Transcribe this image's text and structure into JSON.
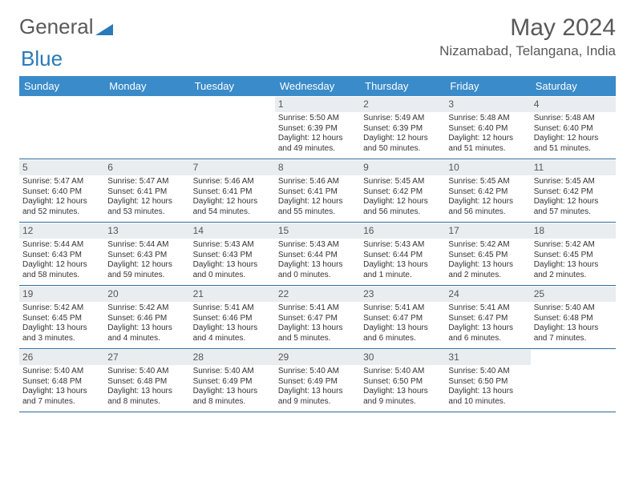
{
  "brand": {
    "part1": "General",
    "part2": "Blue"
  },
  "title": "May 2024",
  "location": "Nizamabad, Telangana, India",
  "colors": {
    "header_bg": "#3a8bc9",
    "header_text": "#ffffff",
    "daynum_bg": "#e9edf0",
    "row_border": "#2e6a9e",
    "body_text": "#333333",
    "title_text": "#595959",
    "brand_gray": "#5a5a5a",
    "brand_blue": "#2a7ab9",
    "page_bg": "#ffffff"
  },
  "typography": {
    "month_title_pt": 30,
    "location_pt": 17,
    "logo_pt": 26,
    "day_header_pt": 13,
    "daynum_pt": 12,
    "cell_text_pt": 10
  },
  "layout": {
    "columns": 7,
    "column_width_pct": 14.28
  },
  "days": [
    "Sunday",
    "Monday",
    "Tuesday",
    "Wednesday",
    "Thursday",
    "Friday",
    "Saturday"
  ],
  "weeks": [
    [
      {
        "n": "",
        "sr": "",
        "ss": "",
        "dl": ""
      },
      {
        "n": "",
        "sr": "",
        "ss": "",
        "dl": ""
      },
      {
        "n": "",
        "sr": "",
        "ss": "",
        "dl": ""
      },
      {
        "n": "1",
        "sr": "Sunrise: 5:50 AM",
        "ss": "Sunset: 6:39 PM",
        "dl": "Daylight: 12 hours and 49 minutes."
      },
      {
        "n": "2",
        "sr": "Sunrise: 5:49 AM",
        "ss": "Sunset: 6:39 PM",
        "dl": "Daylight: 12 hours and 50 minutes."
      },
      {
        "n": "3",
        "sr": "Sunrise: 5:48 AM",
        "ss": "Sunset: 6:40 PM",
        "dl": "Daylight: 12 hours and 51 minutes."
      },
      {
        "n": "4",
        "sr": "Sunrise: 5:48 AM",
        "ss": "Sunset: 6:40 PM",
        "dl": "Daylight: 12 hours and 51 minutes."
      }
    ],
    [
      {
        "n": "5",
        "sr": "Sunrise: 5:47 AM",
        "ss": "Sunset: 6:40 PM",
        "dl": "Daylight: 12 hours and 52 minutes."
      },
      {
        "n": "6",
        "sr": "Sunrise: 5:47 AM",
        "ss": "Sunset: 6:41 PM",
        "dl": "Daylight: 12 hours and 53 minutes."
      },
      {
        "n": "7",
        "sr": "Sunrise: 5:46 AM",
        "ss": "Sunset: 6:41 PM",
        "dl": "Daylight: 12 hours and 54 minutes."
      },
      {
        "n": "8",
        "sr": "Sunrise: 5:46 AM",
        "ss": "Sunset: 6:41 PM",
        "dl": "Daylight: 12 hours and 55 minutes."
      },
      {
        "n": "9",
        "sr": "Sunrise: 5:45 AM",
        "ss": "Sunset: 6:42 PM",
        "dl": "Daylight: 12 hours and 56 minutes."
      },
      {
        "n": "10",
        "sr": "Sunrise: 5:45 AM",
        "ss": "Sunset: 6:42 PM",
        "dl": "Daylight: 12 hours and 56 minutes."
      },
      {
        "n": "11",
        "sr": "Sunrise: 5:45 AM",
        "ss": "Sunset: 6:42 PM",
        "dl": "Daylight: 12 hours and 57 minutes."
      }
    ],
    [
      {
        "n": "12",
        "sr": "Sunrise: 5:44 AM",
        "ss": "Sunset: 6:43 PM",
        "dl": "Daylight: 12 hours and 58 minutes."
      },
      {
        "n": "13",
        "sr": "Sunrise: 5:44 AM",
        "ss": "Sunset: 6:43 PM",
        "dl": "Daylight: 12 hours and 59 minutes."
      },
      {
        "n": "14",
        "sr": "Sunrise: 5:43 AM",
        "ss": "Sunset: 6:43 PM",
        "dl": "Daylight: 13 hours and 0 minutes."
      },
      {
        "n": "15",
        "sr": "Sunrise: 5:43 AM",
        "ss": "Sunset: 6:44 PM",
        "dl": "Daylight: 13 hours and 0 minutes."
      },
      {
        "n": "16",
        "sr": "Sunrise: 5:43 AM",
        "ss": "Sunset: 6:44 PM",
        "dl": "Daylight: 13 hours and 1 minute."
      },
      {
        "n": "17",
        "sr": "Sunrise: 5:42 AM",
        "ss": "Sunset: 6:45 PM",
        "dl": "Daylight: 13 hours and 2 minutes."
      },
      {
        "n": "18",
        "sr": "Sunrise: 5:42 AM",
        "ss": "Sunset: 6:45 PM",
        "dl": "Daylight: 13 hours and 2 minutes."
      }
    ],
    [
      {
        "n": "19",
        "sr": "Sunrise: 5:42 AM",
        "ss": "Sunset: 6:45 PM",
        "dl": "Daylight: 13 hours and 3 minutes."
      },
      {
        "n": "20",
        "sr": "Sunrise: 5:42 AM",
        "ss": "Sunset: 6:46 PM",
        "dl": "Daylight: 13 hours and 4 minutes."
      },
      {
        "n": "21",
        "sr": "Sunrise: 5:41 AM",
        "ss": "Sunset: 6:46 PM",
        "dl": "Daylight: 13 hours and 4 minutes."
      },
      {
        "n": "22",
        "sr": "Sunrise: 5:41 AM",
        "ss": "Sunset: 6:47 PM",
        "dl": "Daylight: 13 hours and 5 minutes."
      },
      {
        "n": "23",
        "sr": "Sunrise: 5:41 AM",
        "ss": "Sunset: 6:47 PM",
        "dl": "Daylight: 13 hours and 6 minutes."
      },
      {
        "n": "24",
        "sr": "Sunrise: 5:41 AM",
        "ss": "Sunset: 6:47 PM",
        "dl": "Daylight: 13 hours and 6 minutes."
      },
      {
        "n": "25",
        "sr": "Sunrise: 5:40 AM",
        "ss": "Sunset: 6:48 PM",
        "dl": "Daylight: 13 hours and 7 minutes."
      }
    ],
    [
      {
        "n": "26",
        "sr": "Sunrise: 5:40 AM",
        "ss": "Sunset: 6:48 PM",
        "dl": "Daylight: 13 hours and 7 minutes."
      },
      {
        "n": "27",
        "sr": "Sunrise: 5:40 AM",
        "ss": "Sunset: 6:48 PM",
        "dl": "Daylight: 13 hours and 8 minutes."
      },
      {
        "n": "28",
        "sr": "Sunrise: 5:40 AM",
        "ss": "Sunset: 6:49 PM",
        "dl": "Daylight: 13 hours and 8 minutes."
      },
      {
        "n": "29",
        "sr": "Sunrise: 5:40 AM",
        "ss": "Sunset: 6:49 PM",
        "dl": "Daylight: 13 hours and 9 minutes."
      },
      {
        "n": "30",
        "sr": "Sunrise: 5:40 AM",
        "ss": "Sunset: 6:50 PM",
        "dl": "Daylight: 13 hours and 9 minutes."
      },
      {
        "n": "31",
        "sr": "Sunrise: 5:40 AM",
        "ss": "Sunset: 6:50 PM",
        "dl": "Daylight: 13 hours and 10 minutes."
      },
      {
        "n": "",
        "sr": "",
        "ss": "",
        "dl": ""
      }
    ]
  ]
}
